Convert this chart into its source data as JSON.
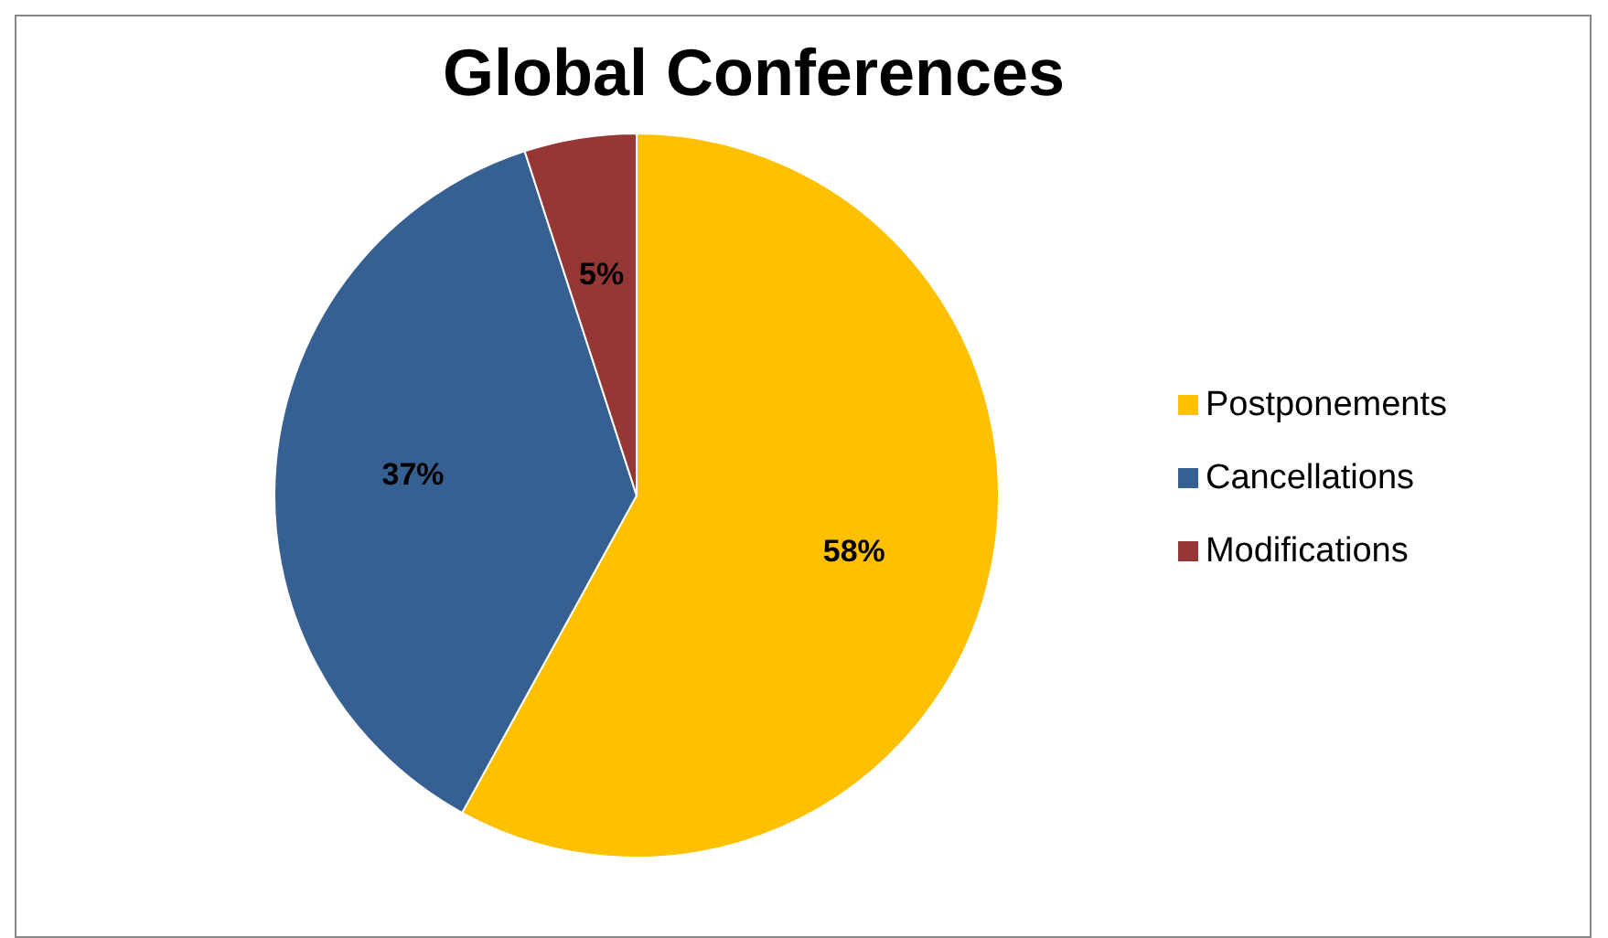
{
  "chart_data": {
    "type": "pie",
    "title": "Global Conferences",
    "categories": [
      "Postponements",
      "Cancellations",
      "Modifications"
    ],
    "values": [
      58,
      37,
      5
    ],
    "colors": [
      "#ffc000",
      "#376092",
      "#953735"
    ],
    "value_labels": [
      "58%",
      "37%",
      "5%"
    ],
    "legend": "right"
  }
}
